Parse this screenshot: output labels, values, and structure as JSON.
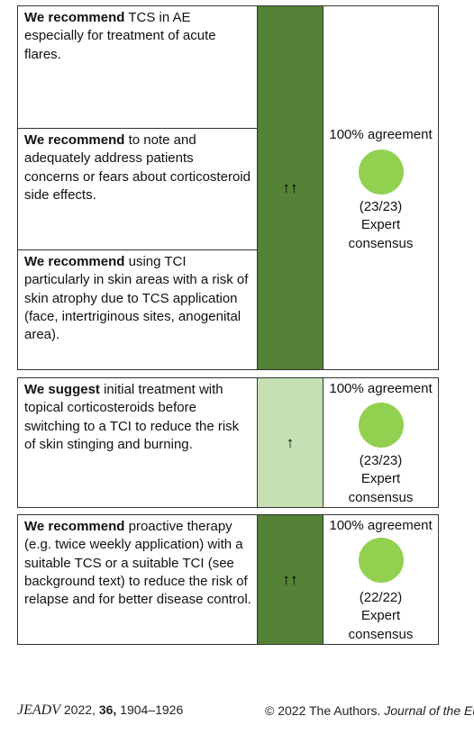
{
  "table1": {
    "recommendations": [
      {
        "bold": "We recommend",
        "text": " TCS in AE especially for treatment of acute flares."
      },
      {
        "bold": "We recommend",
        "text": " to note and adequately address patients concerns or fears about corticosteroid side effects."
      },
      {
        "bold": "We recommend",
        "text": " using TCI particularly in skin areas with a risk of skin atrophy due to TCS application (face, intertriginous sites, anogenital area)."
      }
    ],
    "strength": "↑↑",
    "agreement": "100% agreement",
    "votes": "(23/23)",
    "consensus_line1": "Expert",
    "consensus_line2": "consensus"
  },
  "table2": {
    "bold": "We suggest",
    "text": " initial treatment with topical corticosteroids before switching to a TCI to reduce the risk of skin stinging and burning.",
    "strength": "↑",
    "agreement": "100% agreement",
    "votes": "(23/23)",
    "consensus_line1": "Expert",
    "consensus_line2": "consensus"
  },
  "table3": {
    "bold": "We recommend",
    "text": " proactive therapy (e.g. twice weekly application) with a suitable TCS or a suitable TCI (see background text) to reduce the risk of relapse and for better disease control.",
    "strength": "↑↑",
    "agreement": "100% agreement",
    "votes": "(22/22)",
    "consensus_line1": "Expert",
    "consensus_line2": "consensus"
  },
  "colors": {
    "strong_recommendation": "#538135",
    "weak_recommendation": "#c5e0b3",
    "agreement_dot": "#92d050"
  },
  "footer": {
    "journal": "JEADV",
    "year": "2022,",
    "volume": "36,",
    "pages": "1904–1926",
    "copyright": "© 2022 The Authors.",
    "journal_full": "Journal of the Eu"
  }
}
